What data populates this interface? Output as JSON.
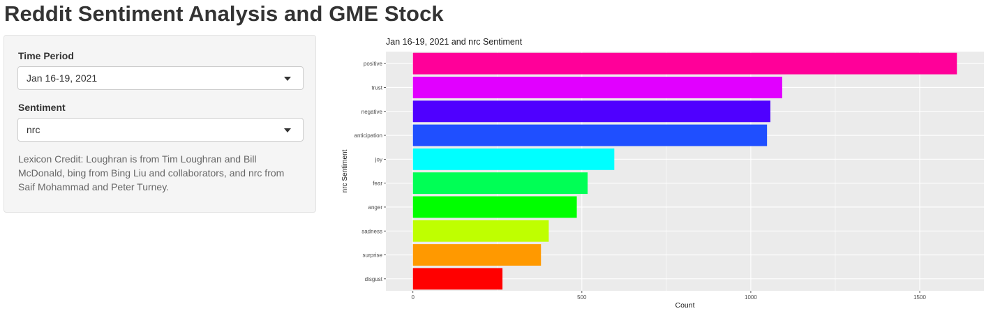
{
  "page": {
    "title": "Reddit Sentiment Analysis and GME Stock"
  },
  "sidebar": {
    "time_period": {
      "label": "Time Period",
      "selected": "Jan 16-19, 2021"
    },
    "sentiment": {
      "label": "Sentiment",
      "selected": "nrc"
    },
    "credit_text": "Lexicon Credit: Loughran is from Tim Loughran and Bill McDonald, bing from Bing Liu and collaborators, and nrc from Saif Mohammad and Peter Turney."
  },
  "chart_data": {
    "type": "bar",
    "orientation": "horizontal",
    "title": "Jan 16-19, 2021 and nrc Sentiment",
    "xlabel": "Count",
    "ylabel": "nrc Sentiment",
    "categories": [
      "positive",
      "trust",
      "negative",
      "anticipation",
      "joy",
      "fear",
      "anger",
      "sadness",
      "surprise",
      "disgust"
    ],
    "values": [
      1610,
      1093,
      1058,
      1048,
      596,
      517,
      485,
      402,
      379,
      265
    ],
    "colors": [
      "#FF0099",
      "#E100FF",
      "#4F00FF",
      "#1F4FFF",
      "#00FFFF",
      "#00FF55",
      "#00FF00",
      "#BFFF00",
      "#FF9900",
      "#FF0000"
    ],
    "xticks": [
      0,
      500,
      1000,
      1500
    ],
    "xlim": [
      -80,
      1690
    ],
    "grid": true,
    "background": "#EBEBEB"
  }
}
